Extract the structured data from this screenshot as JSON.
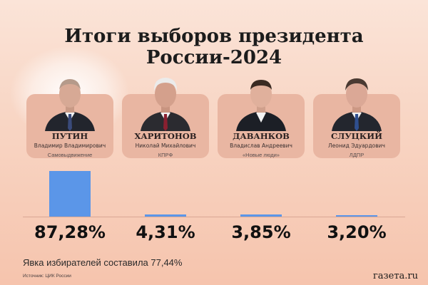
{
  "title": "Итоги выборов президента России-2024",
  "candidates": [
    {
      "surname": "ПУТИН",
      "full_name": "Владимир Владимирович",
      "party": "Самовыдвижение",
      "percent_label": "87,28%"
    },
    {
      "surname": "ХАРИТОНОВ",
      "full_name": "Николай Михайлович",
      "party": "КПРФ",
      "percent_label": "4,31%"
    },
    {
      "surname": "ДАВАНКОВ",
      "full_name": "Владислав Андреевич",
      "party": "«Новые люди»",
      "percent_label": "3,85%"
    },
    {
      "surname": "СЛУЦКИЙ",
      "full_name": "Леонид Эдуардович",
      "party": "ЛДПР",
      "percent_label": "3,20%"
    }
  ],
  "chart_data": {
    "type": "bar",
    "categories": [
      "ПУТИН",
      "ХАРИТОНОВ",
      "ДАВАНКОВ",
      "СЛУЦКИЙ"
    ],
    "values": [
      87.28,
      4.31,
      3.85,
      3.2
    ],
    "title": "Итоги выборов президента России-2024",
    "ylim": [
      0,
      87.28
    ],
    "bar_color": "#5b96e8"
  },
  "footer": {
    "turnout": "Явка избирателей составила 77,44%",
    "source": "Источник: ЦИК России",
    "brand": "газета.ru"
  },
  "colors": {
    "card": "#e9b6a2",
    "bar": "#5b96e8"
  }
}
